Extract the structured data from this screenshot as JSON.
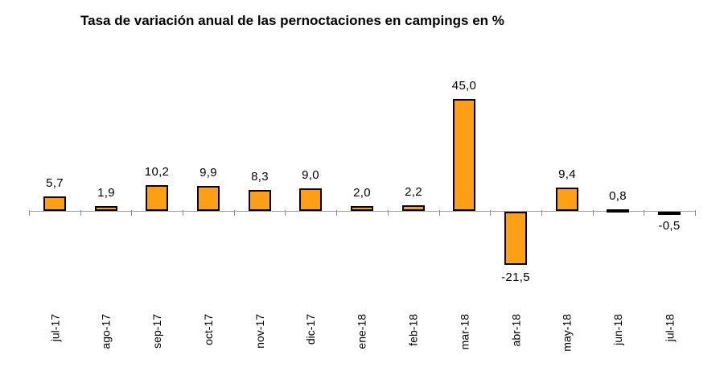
{
  "chart": {
    "title": "Tasa de variación anual de las pernoctaciones en campings en %"
  },
  "chart_data": {
    "type": "bar",
    "title": "Tasa de variación anual de las pernoctaciones en campings en %",
    "categories": [
      "jul-17",
      "ago-17",
      "sep-17",
      "oct-17",
      "nov-17",
      "dic-17",
      "ene-18",
      "feb-18",
      "mar-18",
      "abr-18",
      "may-18",
      "jun-18",
      "jul-18"
    ],
    "values": [
      5.7,
      1.9,
      10.2,
      9.9,
      8.3,
      9.0,
      2.0,
      2.2,
      45.0,
      -21.5,
      9.4,
      0.8,
      -0.5
    ],
    "value_labels": [
      "5,7",
      "1,9",
      "10,2",
      "9,9",
      "8,3",
      "9,0",
      "2,0",
      "2,2",
      "45,0",
      "-21,5",
      "9,4",
      "0,8",
      "-0,5"
    ],
    "xlabel": "",
    "ylabel": "",
    "ylim": [
      -25,
      50
    ],
    "grid": false,
    "legend": null,
    "decimal_separator": ",",
    "x_tick_label_rotation": -90,
    "bar_color": "#FFA014",
    "bar_border_color": "#000000",
    "axis_color": "#A0A0A0",
    "tick_color": "#8C8C8C",
    "text_color": "#000000",
    "background_color": "#FFFFFF"
  }
}
